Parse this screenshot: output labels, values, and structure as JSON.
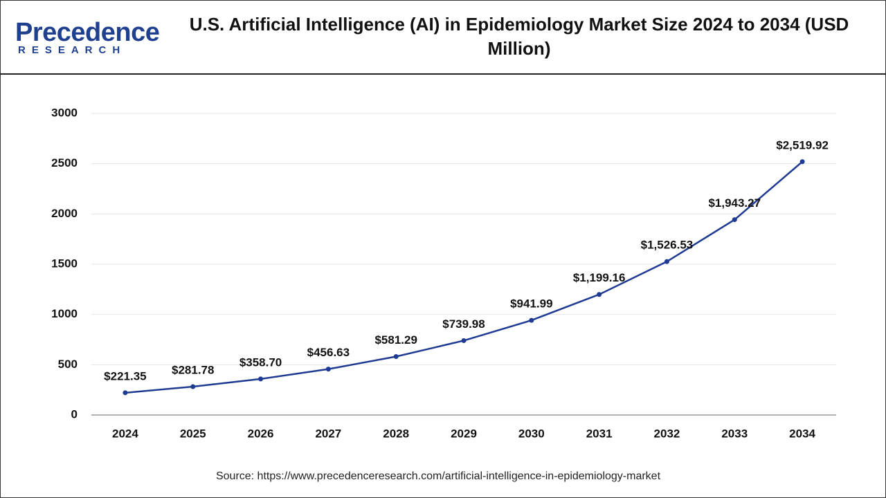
{
  "logo": {
    "name": "Precedence",
    "subtitle": "RESEARCH"
  },
  "chart_data": {
    "type": "line",
    "title": "U.S. Artificial Intelligence (AI) in Epidemiology Market Size 2024 to 2034 (USD Million)",
    "categories": [
      "2024",
      "2025",
      "2026",
      "2027",
      "2028",
      "2029",
      "2030",
      "2031",
      "2032",
      "2033",
      "2034"
    ],
    "values": [
      221.35,
      281.78,
      358.7,
      456.63,
      581.29,
      739.98,
      941.99,
      1199.16,
      1526.53,
      1943.27,
      2519.92
    ],
    "value_labels": [
      "$221.35",
      "$281.78",
      "$358.70",
      "$456.63",
      "$581.29",
      "$739.98",
      "$941.99",
      "$1,199.16",
      "$1,526.53",
      "$1,943.27",
      "$2,519.92"
    ],
    "color": "#1f3a93",
    "ylim": [
      0,
      3000
    ],
    "yticks": [
      0,
      500,
      1000,
      1500,
      2000,
      2500,
      3000
    ],
    "grid": true,
    "source": "Source: https://www.precedenceresearch.com/artificial-intelligence-in-epidemiology-market"
  }
}
